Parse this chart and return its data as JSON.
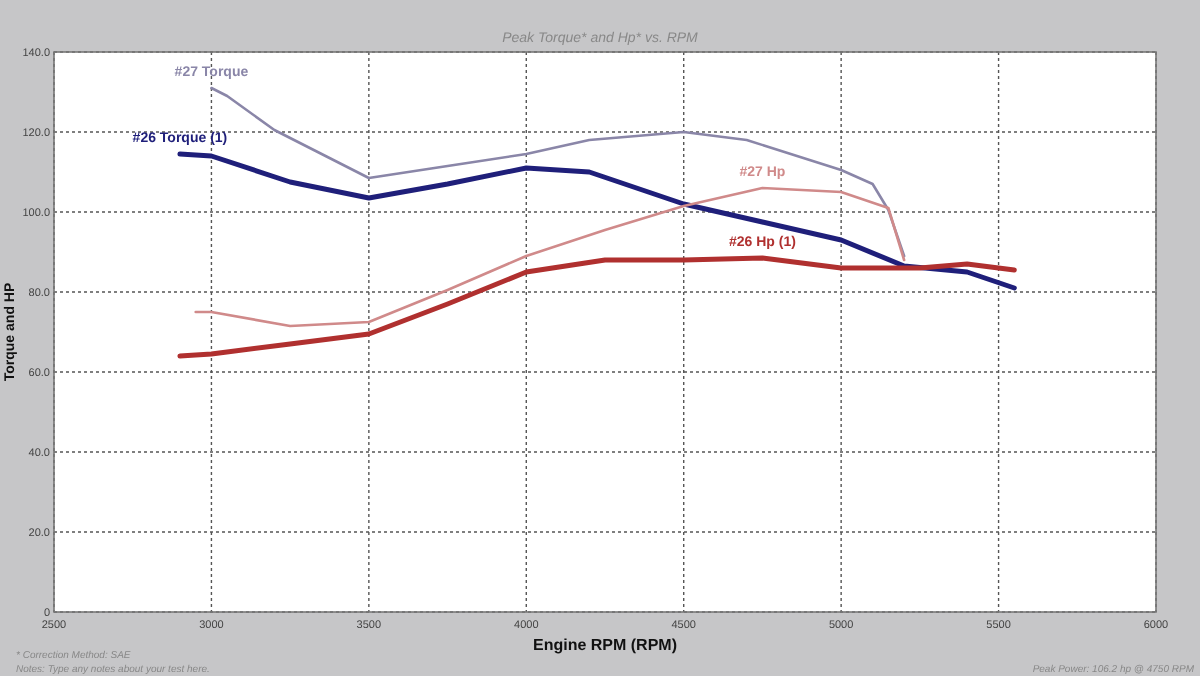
{
  "chart_data": {
    "type": "line",
    "title": "Peak Torque* and Hp* vs. RPM",
    "xlabel": "Engine RPM (RPM)",
    "ylabel": "Torque and HP",
    "xlim": [
      2500,
      6000
    ],
    "xticks": [
      2500,
      3000,
      3500,
      4000,
      4500,
      5000,
      5500,
      6000
    ],
    "ylim": [
      0,
      140
    ],
    "yticks": [
      {
        "value": 0,
        "label": "0"
      },
      {
        "value": 20,
        "label": "20.0"
      },
      {
        "value": 40,
        "label": "40.0"
      },
      {
        "value": 60,
        "label": "60.0"
      },
      {
        "value": 80,
        "label": "80.0"
      },
      {
        "value": 100,
        "label": "100.0"
      },
      {
        "value": 120,
        "label": "120.0"
      },
      {
        "value": 140,
        "label": "140.0"
      }
    ],
    "grid": true,
    "series": [
      {
        "name": "#27 Torque",
        "color": "#8a86a8",
        "x": [
          3000,
          3050,
          3200,
          3500,
          3750,
          4000,
          4200,
          4500,
          4700,
          5000,
          5100,
          5150,
          5200
        ],
        "values": [
          131,
          129,
          120.5,
          108.5,
          111.5,
          114.5,
          118,
          120,
          118,
          110.5,
          107,
          100.5,
          89
        ]
      },
      {
        "name": "#26 Torque (1)",
        "color": "#1f1f7a",
        "x": [
          2900,
          3000,
          3250,
          3500,
          3750,
          4000,
          4200,
          4500,
          4750,
          5000,
          5200,
          5400,
          5550
        ],
        "values": [
          114.5,
          114,
          107.5,
          103.5,
          107,
          111,
          110,
          102,
          97.5,
          93,
          86.5,
          85,
          81
        ]
      },
      {
        "name": "#27 Hp",
        "color": "#d08a8a",
        "x": [
          2950,
          3000,
          3250,
          3500,
          3750,
          4000,
          4250,
          4500,
          4750,
          5000,
          5150,
          5200
        ],
        "values": [
          75,
          75,
          71.5,
          72.5,
          80.5,
          89,
          95.5,
          101.5,
          106,
          105,
          101,
          88
        ]
      },
      {
        "name": "#26 Hp (1)",
        "color": "#b0302f",
        "x": [
          2900,
          3000,
          3250,
          3500,
          3750,
          4000,
          4250,
          4500,
          4750,
          5000,
          5250,
          5400,
          5550
        ],
        "values": [
          64,
          64.5,
          67,
          69.5,
          77,
          85,
          88,
          88,
          88.5,
          86,
          86,
          87,
          85.5
        ]
      }
    ],
    "annotations": [
      "* Correction Method: SAE",
      "Notes: Type any notes about your test here.",
      "Peak Power: 106.2 hp @ 4750 RPM"
    ]
  }
}
